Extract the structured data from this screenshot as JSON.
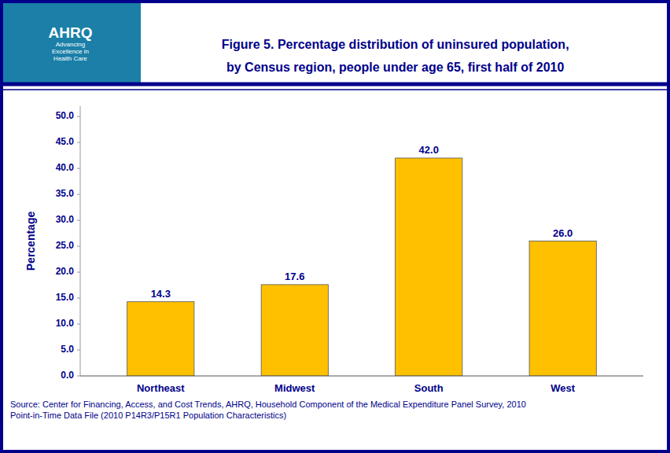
{
  "chart_data": {
    "type": "bar",
    "title": "Figure 5. Percentage distribution of uninsured population,\nby Census region, people under age 65, first half of 2010",
    "ylabel": "Percentage",
    "categories": [
      "Northeast",
      "Midwest",
      "South",
      "West"
    ],
    "values": [
      14.3,
      17.6,
      42.0,
      26.0
    ],
    "value_labels": [
      "14.3",
      "17.6",
      "42.0",
      "26.0"
    ],
    "data_labels": true,
    "color": "#FFC000",
    "ylim": [
      0,
      52
    ],
    "yticks": [
      {
        "value": 0,
        "label": "0.0"
      },
      {
        "value": 5,
        "label": "5.0"
      },
      {
        "value": 10,
        "label": "10.0"
      },
      {
        "value": 15,
        "label": "15.0"
      },
      {
        "value": 20,
        "label": "20.0"
      },
      {
        "value": 25,
        "label": "25.0"
      },
      {
        "value": 30,
        "label": "30.0"
      },
      {
        "value": 35,
        "label": "35.0"
      },
      {
        "value": 40,
        "label": "40.0"
      },
      {
        "value": 45,
        "label": "45.0"
      },
      {
        "value": 50,
        "label": "50.0"
      }
    ],
    "grid": false,
    "annotations": [
      "AHRQ",
      "Advancing\nExcellence in\nHealth Care",
      "Source: Center for Financing, Access, and Cost Trends, AHRQ, Household Component of the Medical Expenditure Panel Survey,  2010\nPoint-in-Time Data File (2010 P14R3/P15R1 Population Characteristics)"
    ]
  }
}
